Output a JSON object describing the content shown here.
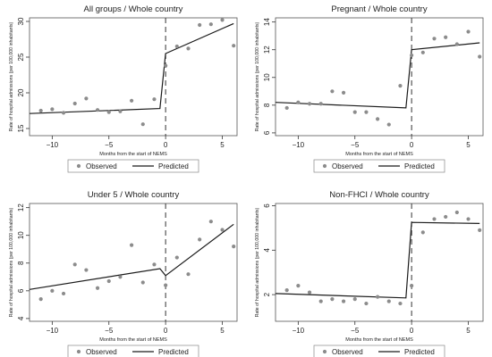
{
  "chart_data": [
    {
      "type": "scatter",
      "title": "All groups / Whole country",
      "xlabel": "Months from the start of NEMS",
      "ylabel": "Rate of hospital admissions (per 100,000 inhabitants)",
      "xlim": [
        -12,
        6.3
      ],
      "ylim": [
        14,
        30.5
      ],
      "xticks": [
        -10,
        -5,
        0,
        5
      ],
      "yticks": [
        15,
        20,
        25,
        30
      ],
      "cutoff": 0,
      "legend": [
        "Observed",
        "Predicted"
      ],
      "observed": {
        "x": [
          -11,
          -10,
          -9,
          -8,
          -7,
          -6,
          -5,
          -4,
          -3,
          -2,
          -1,
          0,
          1,
          2,
          3,
          4,
          5,
          6
        ],
        "y": [
          17.5,
          17.7,
          17.2,
          18.5,
          19.2,
          17.6,
          17.3,
          17.4,
          18.9,
          15.6,
          19.1,
          23.8,
          26.5,
          26.2,
          29.5,
          29.6,
          30.2,
          26.6
        ]
      },
      "predicted": {
        "x": [
          -12,
          -0.5,
          0,
          6
        ],
        "y": [
          17.1,
          17.8,
          25.5,
          29.7
        ]
      }
    },
    {
      "type": "scatter",
      "title": "Pregnant / Whole country",
      "xlabel": "Months from the start of NEMS",
      "ylabel": "Rate of hospital admissions (per 100,000 inhabitants)",
      "xlim": [
        -12,
        6.3
      ],
      "ylim": [
        5.8,
        14.3
      ],
      "xticks": [
        -10,
        -5,
        0,
        5
      ],
      "yticks": [
        6,
        8,
        10,
        12,
        14
      ],
      "cutoff": 0,
      "legend": [
        "Observed",
        "Predicted"
      ],
      "observed": {
        "x": [
          -11,
          -10,
          -9,
          -8,
          -7,
          -6,
          -5,
          -4,
          -3,
          -2,
          -1,
          0,
          1,
          2,
          3,
          4,
          5,
          6
        ],
        "y": [
          7.8,
          8.2,
          8.1,
          8.1,
          9,
          8.9,
          7.5,
          7.5,
          7,
          6.6,
          9.4,
          11.6,
          11.8,
          12.8,
          12.9,
          12.4,
          13.3,
          11.5
        ]
      },
      "predicted": {
        "x": [
          -12,
          -0.5,
          0,
          6
        ],
        "y": [
          8.2,
          7.8,
          12,
          12.5
        ]
      }
    },
    {
      "type": "scatter",
      "title": "Under 5 / Whole country",
      "xlabel": "Months from the start of NEMS",
      "ylabel": "Rate of hospital admissions (per 100,000 inhabitants)",
      "xlim": [
        -12,
        6.3
      ],
      "ylim": [
        3.8,
        12.3
      ],
      "xticks": [
        -10,
        -5,
        0,
        5
      ],
      "yticks": [
        4,
        6,
        8,
        10,
        12
      ],
      "cutoff": 0,
      "legend": [
        "Observed",
        "Predicted"
      ],
      "observed": {
        "x": [
          -11,
          -10,
          -9,
          -8,
          -7,
          -6,
          -5,
          -4,
          -3,
          -2,
          -1,
          0,
          1,
          2,
          3,
          4,
          5,
          6
        ],
        "y": [
          5.4,
          6,
          5.8,
          7.9,
          7.5,
          6.2,
          6.7,
          7,
          9.3,
          6.6,
          7.9,
          6.4,
          8.4,
          7.2,
          9.7,
          11,
          10.4,
          9.2
        ]
      },
      "predicted": {
        "x": [
          -12,
          -0.5,
          0,
          6
        ],
        "y": [
          6.1,
          7.6,
          7.1,
          10.8
        ]
      }
    },
    {
      "type": "scatter",
      "title": "Non-FHCI / Whole country",
      "xlabel": "Months from the start of NEMS",
      "ylabel": "Rate of hospital admissions (per 100,000 inhabitants)",
      "xlim": [
        -12,
        6.3
      ],
      "ylim": [
        0.8,
        6.1
      ],
      "xticks": [
        -10,
        -5,
        0,
        5
      ],
      "yticks": [
        2,
        4,
        6
      ],
      "cutoff": 0,
      "legend": [
        "Observed",
        "Predicted"
      ],
      "observed": {
        "x": [
          -11,
          -10,
          -9,
          -8,
          -7,
          -6,
          -5,
          -4,
          -3,
          -2,
          -1,
          0,
          1,
          2,
          3,
          4,
          5,
          6
        ],
        "y": [
          2.2,
          2.4,
          2.1,
          1.7,
          1.8,
          1.7,
          1.8,
          1.6,
          1.9,
          1.7,
          1.6,
          2.4,
          4.8,
          5.4,
          5.5,
          5.7,
          5.4,
          4.9
        ]
      },
      "predicted": {
        "x": [
          -12,
          -0.5,
          0,
          6
        ],
        "y": [
          2.05,
          1.85,
          5.25,
          5.2
        ]
      }
    }
  ]
}
